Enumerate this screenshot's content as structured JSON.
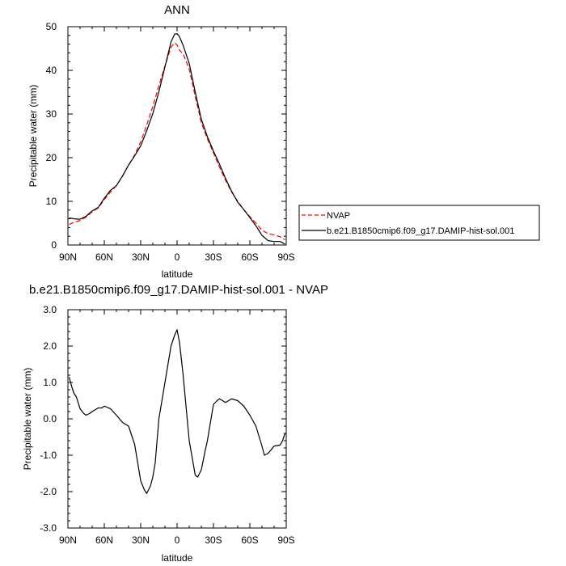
{
  "chart_data": [
    {
      "type": "line",
      "title": "ANN",
      "xlabel": "latitude",
      "ylabel": "Precipitable water (mm)",
      "xlim": [
        90,
        -90
      ],
      "ylim": [
        0,
        50
      ],
      "x_ticks": [
        90,
        60,
        30,
        0,
        -30,
        -60,
        -90
      ],
      "x_tick_labels": [
        "90N",
        "60N",
        "30N",
        "0",
        "30S",
        "60S",
        "90S"
      ],
      "y_ticks": [
        0,
        10,
        20,
        30,
        40,
        50
      ],
      "y_tick_labels": [
        "0",
        "10",
        "20",
        "30",
        "40",
        "50"
      ],
      "legend": {
        "placement": "right",
        "entries": [
          "NVAP",
          "b.e21.B1850cmip6.f09_g17.DAMIP-hist-sol.001"
        ]
      },
      "series": [
        {
          "name": "NVAP",
          "color": "#ff0000",
          "dash": "dashed",
          "x": [
            89,
            85,
            80,
            75,
            70,
            65,
            60,
            55,
            50,
            45,
            40,
            35,
            30,
            25,
            20,
            15,
            10,
            5,
            2,
            0,
            -2,
            -5,
            -10,
            -15,
            -20,
            -25,
            -30,
            -35,
            -40,
            -45,
            -50,
            -55,
            -60,
            -65,
            -70,
            -75,
            -80,
            -85,
            -89
          ],
          "y": [
            4.7,
            5.2,
            5.6,
            6.4,
            7.6,
            8.5,
            10.4,
            12.1,
            13.6,
            15.8,
            18.3,
            20.6,
            23.6,
            27.5,
            31.7,
            36.5,
            41.0,
            45.3,
            46.3,
            45.8,
            44.6,
            43.8,
            40.3,
            34.0,
            28.0,
            24.3,
            21.1,
            17.8,
            14.8,
            12.1,
            10.0,
            8.1,
            6.5,
            5.0,
            3.4,
            2.6,
            2.3,
            1.9,
            1.2
          ]
        },
        {
          "name": "b.e21.B1850cmip6.f09_g17.DAMIP-hist-sol.001",
          "color": "#000000",
          "dash": "solid",
          "x": [
            89,
            85,
            80,
            75,
            70,
            65,
            60,
            55,
            50,
            45,
            40,
            35,
            30,
            25,
            20,
            15,
            10,
            5,
            2,
            0,
            -2,
            -5,
            -10,
            -15,
            -20,
            -25,
            -30,
            -35,
            -40,
            -45,
            -50,
            -55,
            -60,
            -65,
            -70,
            -75,
            -80,
            -85,
            -89
          ],
          "y": [
            6.2,
            6.0,
            5.9,
            6.6,
            7.8,
            8.6,
            10.7,
            12.5,
            13.6,
            15.8,
            18.3,
            20.4,
            22.7,
            26.2,
            30.1,
            35.1,
            40.8,
            46.5,
            48.3,
            48.4,
            47.7,
            45.7,
            41.6,
            35.0,
            28.8,
            24.8,
            21.5,
            18.5,
            15.2,
            12.3,
            9.8,
            8.1,
            6.3,
            4.4,
            2.2,
            1.0,
            0.8,
            0.8,
            0.2
          ]
        }
      ]
    },
    {
      "type": "line",
      "title": "b.e21.B1850cmip6.f09_g17.DAMIP-hist-sol.001 - NVAP",
      "xlabel": "latitude",
      "ylabel": "Precipitable water (mm)",
      "xlim": [
        90,
        -90
      ],
      "ylim": [
        -3,
        3
      ],
      "x_ticks": [
        90,
        60,
        30,
        0,
        -30,
        -60,
        -90
      ],
      "x_tick_labels": [
        "90N",
        "60N",
        "30N",
        "0",
        "30S",
        "60S",
        "90S"
      ],
      "y_ticks": [
        3,
        2,
        1,
        0,
        -1,
        -2,
        -3
      ],
      "y_tick_labels": [
        "3.0",
        "2.0",
        "1.0",
        "0.0",
        "-1.0",
        "-2.0",
        "-3.0"
      ],
      "series": [
        {
          "color": "#000000",
          "dash": "solid",
          "x": [
            89,
            87,
            85,
            83,
            80,
            77,
            75,
            72,
            70,
            65,
            62,
            60,
            55,
            50,
            45,
            40,
            35,
            30,
            27,
            25,
            22,
            20,
            18,
            15,
            10,
            5,
            2,
            0,
            -2,
            -5,
            -10,
            -15,
            -17,
            -20,
            -23,
            -25,
            -30,
            -33,
            -35,
            -40,
            -45,
            -50,
            -55,
            -60,
            -65,
            -70,
            -72,
            -75,
            -80,
            -85,
            -87,
            -89
          ],
          "y": [
            1.15,
            0.9,
            0.7,
            0.6,
            0.28,
            0.15,
            0.1,
            0.15,
            0.2,
            0.3,
            0.3,
            0.35,
            0.28,
            0.1,
            -0.1,
            -0.2,
            -0.7,
            -1.7,
            -1.95,
            -2.05,
            -1.85,
            -1.6,
            -1.2,
            0.0,
            1.0,
            2.0,
            2.3,
            2.45,
            2.1,
            1.2,
            -0.6,
            -1.55,
            -1.6,
            -1.4,
            -0.9,
            -0.6,
            0.4,
            0.5,
            0.55,
            0.45,
            0.55,
            0.5,
            0.35,
            0.1,
            -0.2,
            -0.75,
            -1.0,
            -0.95,
            -0.75,
            -0.72,
            -0.6,
            -0.4
          ]
        }
      ]
    }
  ]
}
